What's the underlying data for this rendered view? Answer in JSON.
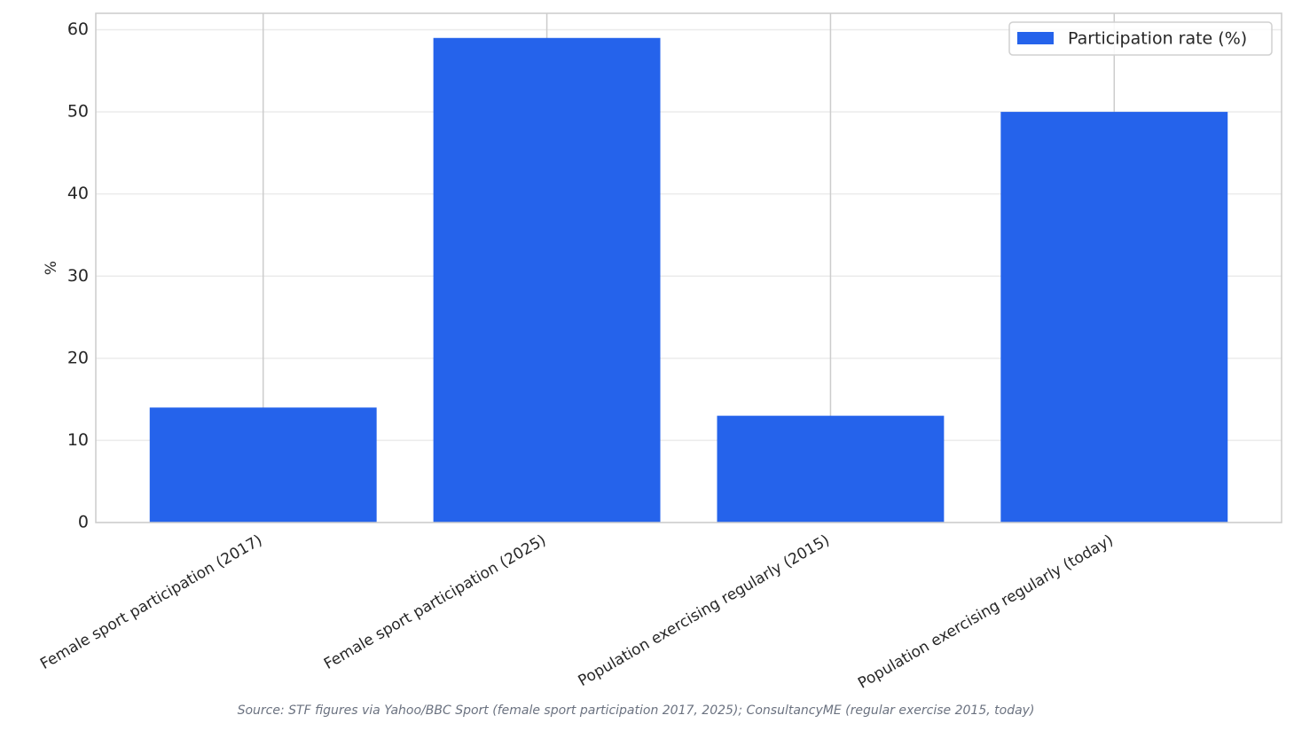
{
  "chart_data": {
    "type": "bar",
    "categories": [
      "Female sport participation (2017)",
      "Female sport participation (2025)",
      "Population exercising regularly (2015)",
      "Population exercising regularly (today)"
    ],
    "series": [
      {
        "name": "Participation rate (%)",
        "color": "#2563eb",
        "values": [
          14,
          59,
          13,
          50
        ]
      }
    ],
    "y_label": "%",
    "source": "Source: STF figures via Yahoo/BBC Sport (female sport participation 2017, 2025); ConsultancyME (regular exercise 2015, today)",
    "ylim": [
      0,
      62
    ],
    "yticks": [
      0,
      10,
      20,
      30,
      40,
      50,
      60
    ],
    "grid": true,
    "legend": "upper right"
  }
}
